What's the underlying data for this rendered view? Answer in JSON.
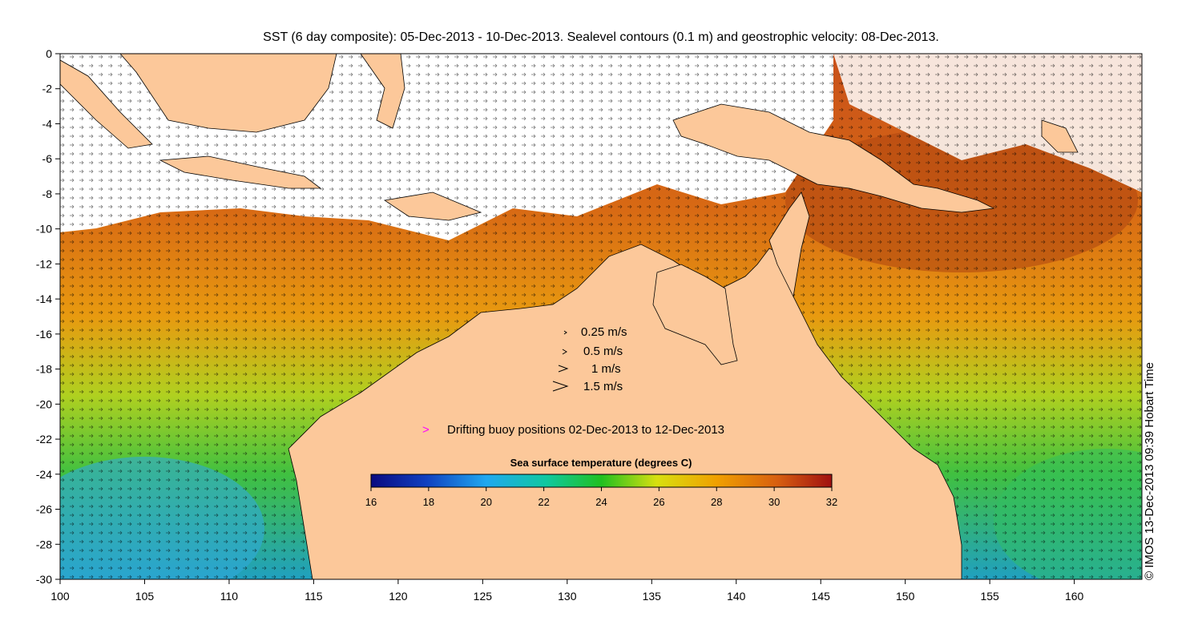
{
  "title": "SST (6 day composite): 05-Dec-2013 - 10-Dec-2013. Sealevel contours (0.1 m) and geostrophic velocity: 08-Dec-2013.",
  "credit": "© IMOS 13-Dec-2013 09:39 Hobart Time",
  "axes": {
    "x_ticks": [
      "100",
      "105",
      "110",
      "115",
      "120",
      "125",
      "130",
      "135",
      "140",
      "145",
      "150",
      "155",
      "160"
    ],
    "y_ticks": [
      "0",
      "-2",
      "-4",
      "-6",
      "-8",
      "-10",
      "-12",
      "-14",
      "-16",
      "-18",
      "-20",
      "-22",
      "-24",
      "-26",
      "-28",
      "-30"
    ],
    "lon_range": [
      100,
      164
    ],
    "lat_range": [
      -30,
      0
    ]
  },
  "velocity_legend": [
    {
      "label": "0.25 m/s",
      "speed": 0.25
    },
    {
      "label": "0.5 m/s",
      "speed": 0.5
    },
    {
      "label": "1 m/s",
      "speed": 1
    },
    {
      "label": "1.5 m/s",
      "speed": 1.5
    }
  ],
  "buoy_legend": {
    "marker": ">",
    "label": "Drifting buoy positions 02-Dec-2013 to 12-Dec-2013",
    "color": "#ff00ff"
  },
  "colorbar": {
    "title": "Sea surface temperature (degrees C)",
    "ticks": [
      "16",
      "18",
      "20",
      "22",
      "24",
      "26",
      "28",
      "30",
      "32"
    ],
    "range": [
      16,
      32
    ]
  },
  "colors": {
    "land": "#fcc89a",
    "cloud": "#ffffff",
    "buoy": "#ff00ff"
  }
}
